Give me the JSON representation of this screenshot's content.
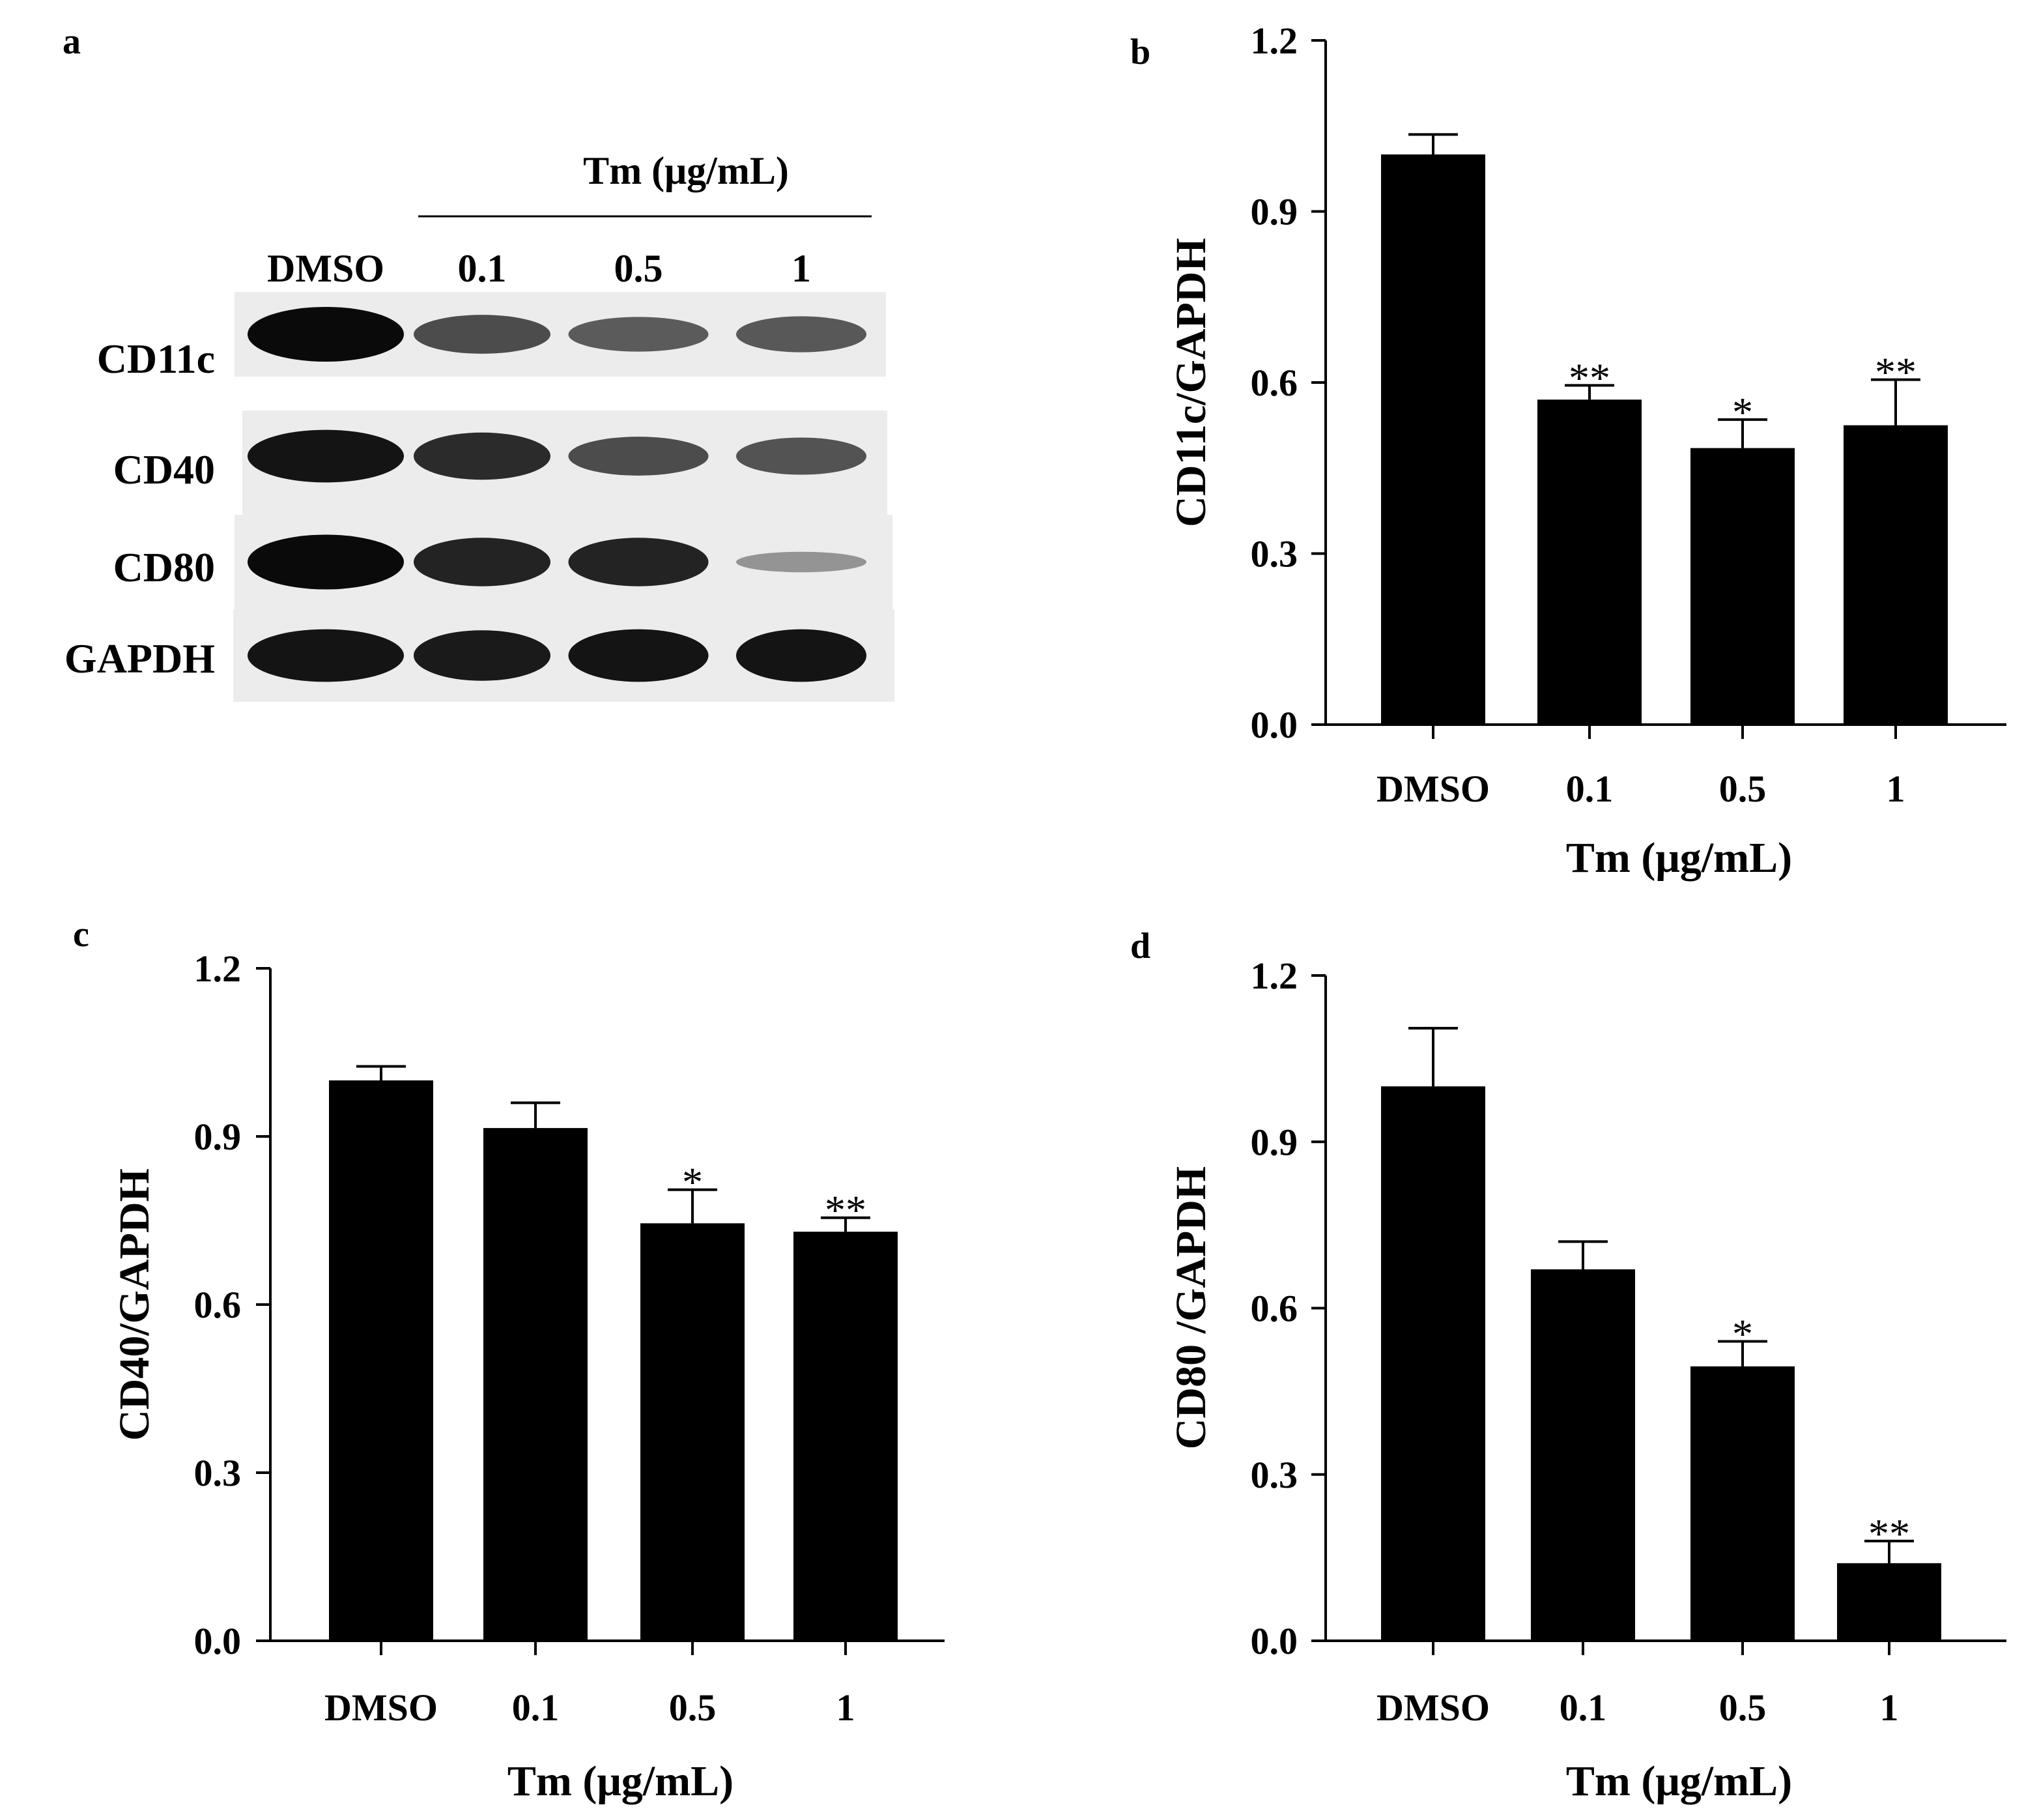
{
  "panels": {
    "a": "a",
    "b": "b",
    "c": "c",
    "d": "d"
  },
  "western_blot": {
    "treatment_label": "Tm (μg/mL)",
    "lanes": [
      "DMSO",
      "0.1",
      "0.5",
      "1"
    ],
    "rows": [
      {
        "name": "CD11c",
        "intensity": [
          1.0,
          0.62,
          0.52,
          0.55
        ]
      },
      {
        "name": "CD40",
        "intensity": [
          0.95,
          0.82,
          0.62,
          0.58
        ]
      },
      {
        "name": "CD80",
        "intensity": [
          1.0,
          0.85,
          0.85,
          0.18
        ]
      },
      {
        "name": "GAPDH",
        "intensity": [
          0.95,
          0.9,
          0.95,
          0.95
        ]
      }
    ]
  },
  "colors": {
    "bar": "#000000",
    "axis": "#000000",
    "blot_bg": "#ececec",
    "band": "#0a0a0a"
  },
  "chart_data": [
    {
      "panel": "b",
      "type": "bar",
      "categories": [
        "DMSO",
        "0.1",
        "0.5",
        "1"
      ],
      "values": [
        1.0,
        0.57,
        0.485,
        0.525
      ],
      "errors": [
        0.035,
        0.025,
        0.05,
        0.08
      ],
      "significance": [
        "",
        "**",
        "*",
        "**"
      ],
      "xlabel": "Tm (μg/mL)",
      "ylabel": "CD11c/GAPDH",
      "ylim": [
        0,
        1.2
      ],
      "yticks": [
        "0.0",
        "0.3",
        "0.6",
        "0.9",
        "1.2"
      ]
    },
    {
      "panel": "c",
      "type": "bar",
      "categories": [
        "DMSO",
        "0.1",
        "0.5",
        "1"
      ],
      "values": [
        1.0,
        0.915,
        0.745,
        0.73
      ],
      "errors": [
        0.025,
        0.045,
        0.06,
        0.025
      ],
      "significance": [
        "",
        "",
        "*",
        "**"
      ],
      "xlabel": "Tm (μg/mL)",
      "ylabel": "CD40/GAPDH",
      "ylim": [
        0,
        1.2
      ],
      "yticks": [
        "0.0",
        "0.3",
        "0.6",
        "0.9",
        "1.2"
      ]
    },
    {
      "panel": "d",
      "type": "bar",
      "categories": [
        "DMSO",
        "0.1",
        "0.5",
        "1"
      ],
      "values": [
        1.0,
        0.67,
        0.495,
        0.14
      ],
      "errors": [
        0.105,
        0.05,
        0.045,
        0.04
      ],
      "significance": [
        "",
        "",
        "*",
        "**"
      ],
      "xlabel": "Tm (μg/mL)",
      "ylabel": "CD80 /GAPDH",
      "ylim": [
        0,
        1.2
      ],
      "yticks": [
        "0.0",
        "0.3",
        "0.6",
        "0.9",
        "1.2"
      ]
    }
  ]
}
